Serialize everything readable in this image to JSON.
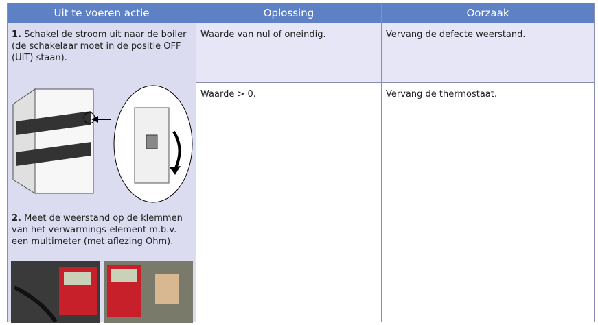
{
  "table": {
    "header": [
      "Uit te voeren actie",
      "Oplossing",
      "Oorzaak"
    ],
    "rows": [
      [
        {
          "number": "1.",
          "text": "Schakel de stroom uit naar de boiler (de schakelaar moet in de positie OFF (UIT) staan)."
        },
        "Waarde van nul of oneindig.",
        "Vervang de defecte weerstand."
      ],
      [
        {
          "number": "2.",
          "text": "Meet de weerstand op de klemmen van het verwarmings-element m.b.v. een multimeter (met aflezing Ohm)."
        },
        "Waarde > 0.",
        "Vervang de thermostaat."
      ]
    ]
  }
}
